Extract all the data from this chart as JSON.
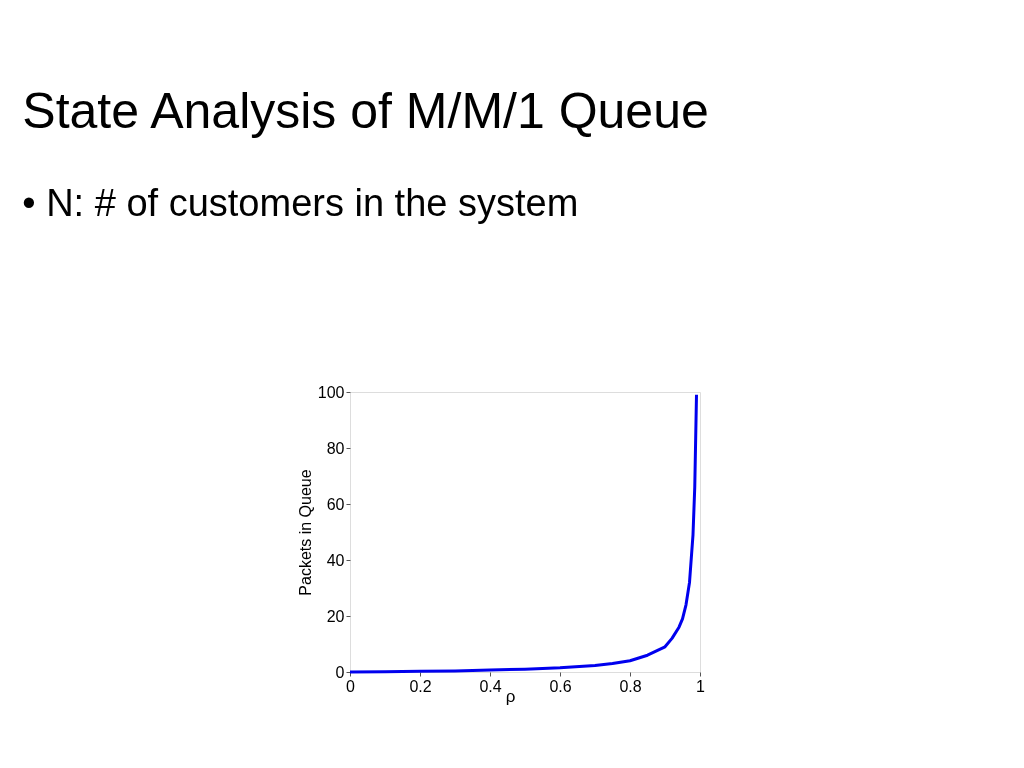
{
  "chart_data": {
    "type": "line",
    "title": "State Analysis of M/M/1 Queue",
    "subtitle": "• N: # of customers in the system",
    "xlabel": "ρ",
    "ylabel": "Packets in Queue",
    "x": [
      0,
      0.1,
      0.2,
      0.3,
      0.4,
      0.5,
      0.6,
      0.7,
      0.75,
      0.8,
      0.85,
      0.9,
      0.92,
      0.94,
      0.95,
      0.96,
      0.97,
      0.98,
      0.985,
      0.99
    ],
    "series": [
      {
        "color": "#0000ee",
        "values": [
          0,
          0.1,
          0.3,
          0.4,
          0.7,
          1,
          1.5,
          2.3,
          3,
          4,
          6,
          9,
          12,
          16,
          19,
          24,
          32,
          49,
          66,
          99
        ]
      }
    ],
    "xlim": [
      0,
      1
    ],
    "xticks": [
      0,
      0.2,
      0.4,
      0.6,
      0.8,
      1
    ],
    "ylim": [
      0,
      100
    ],
    "yticks": [
      0,
      20,
      40,
      60,
      80,
      100
    ],
    "grid": false,
    "legend": false,
    "marker": "none",
    "line_style": "solid"
  }
}
